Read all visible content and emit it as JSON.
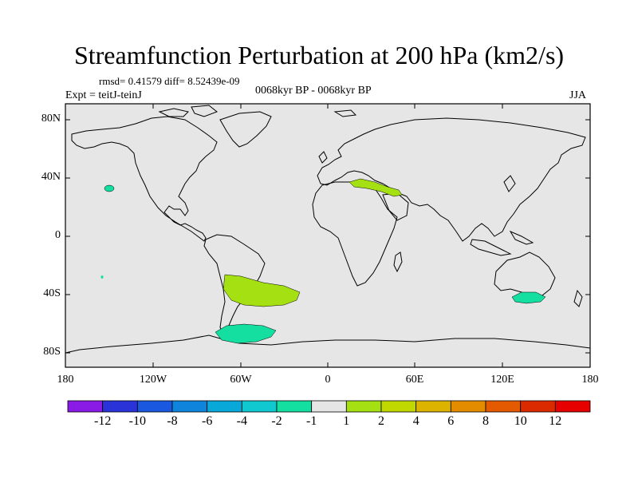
{
  "title": "Streamfunction Perturbation at 200 hPa (km2/s)",
  "stats": "rmsd= 0.41579 diff= 8.52439e-09",
  "experiment": "Expt = teitJ-teinJ",
  "period": "0068kyr BP - 0068kyr BP",
  "season": "JJA",
  "lat_labels": [
    "80N",
    "40N",
    "0",
    "40S",
    "80S"
  ],
  "lon_labels": [
    "180",
    "120W",
    "60W",
    "0",
    "60E",
    "120E",
    "180"
  ],
  "colorbar": {
    "labels": [
      "-12",
      "-10",
      "-8",
      "-6",
      "-4",
      "-2",
      "-1",
      "1",
      "2",
      "4",
      "6",
      "8",
      "10",
      "12"
    ],
    "colors": [
      "#8a1ae6",
      "#2a33d8",
      "#1a58e0",
      "#0f84dc",
      "#08a8d8",
      "#10c8d0",
      "#14dea0",
      "#e6e6e6",
      "#a4e012",
      "#c0d800",
      "#dcb400",
      "#e48c00",
      "#e45a00",
      "#dc2a00",
      "#e60000"
    ]
  },
  "field_colors": {
    "background": "#e6e6e6",
    "positive_1_2": "#a4e012",
    "negative_2_1": "#14dea0"
  }
}
